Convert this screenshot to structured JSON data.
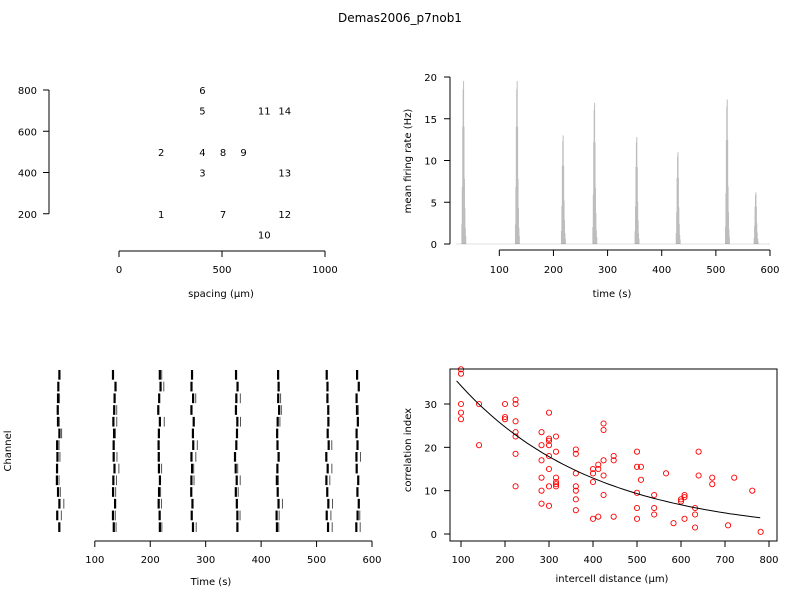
{
  "figure": {
    "title": "Demas2006_p7nob1"
  },
  "chart_data": [
    {
      "type": "scatter",
      "xlabel": "spacing (µm)",
      "ylabel": "",
      "xlim": [
        0,
        1000
      ],
      "ylim": [
        0,
        800
      ],
      "xticks": [
        0,
        500,
        1000
      ],
      "yticks": [
        200,
        400,
        600,
        800
      ],
      "points": [
        {
          "label": "1",
          "x": 200,
          "y": 200
        },
        {
          "label": "2",
          "x": 200,
          "y": 500
        },
        {
          "label": "3",
          "x": 400,
          "y": 400
        },
        {
          "label": "4",
          "x": 400,
          "y": 500
        },
        {
          "label": "5",
          "x": 400,
          "y": 700
        },
        {
          "label": "6",
          "x": 400,
          "y": 800
        },
        {
          "label": "7",
          "x": 500,
          "y": 200
        },
        {
          "label": "8",
          "x": 500,
          "y": 500
        },
        {
          "label": "9",
          "x": 600,
          "y": 500
        },
        {
          "label": "10",
          "x": 700,
          "y": 100
        },
        {
          "label": "11",
          "x": 700,
          "y": 700
        },
        {
          "label": "12",
          "x": 800,
          "y": 200
        },
        {
          "label": "13",
          "x": 800,
          "y": 400
        },
        {
          "label": "14",
          "x": 800,
          "y": 700
        }
      ]
    },
    {
      "type": "bar",
      "xlabel": "time (s)",
      "ylabel": "mean firing rate (Hz)",
      "xlim": [
        20,
        600
      ],
      "ylim": [
        0,
        20
      ],
      "xticks": [
        100,
        200,
        300,
        400,
        500,
        600
      ],
      "yticks": [
        0,
        5,
        10,
        15,
        20
      ],
      "color": "#bdbdbd",
      "bursts": [
        {
          "t": 34,
          "peak": 19.5
        },
        {
          "t": 133,
          "peak": 19.5
        },
        {
          "t": 218,
          "peak": 13.0
        },
        {
          "t": 276,
          "peak": 16.9
        },
        {
          "t": 354,
          "peak": 12.8
        },
        {
          "t": 430,
          "peak": 11.0
        },
        {
          "t": 521,
          "peak": 17.3
        },
        {
          "t": 574,
          "peak": 6.2
        }
      ]
    },
    {
      "type": "raster",
      "xlabel": "Time (s)",
      "ylabel": "Channel",
      "xlim": [
        30,
        600
      ],
      "xticks": [
        100,
        200,
        300,
        400,
        500,
        600
      ],
      "channels": 14,
      "burst_times": [
        34,
        135,
        217,
        276,
        355,
        430,
        520,
        574
      ]
    },
    {
      "type": "scatter",
      "xlabel": "intercell distance (µm)",
      "ylabel": "correlation index",
      "xlim": [
        80,
        800
      ],
      "ylim": [
        0,
        38
      ],
      "xticks": [
        100,
        200,
        300,
        400,
        500,
        600,
        700,
        800
      ],
      "yticks": [
        0,
        10,
        20,
        30
      ],
      "color": "#ff0000",
      "points": [
        [
          100,
          38
        ],
        [
          100,
          37
        ],
        [
          100,
          30
        ],
        [
          100,
          28
        ],
        [
          100,
          26.5
        ],
        [
          141,
          30
        ],
        [
          141,
          20.5
        ],
        [
          200,
          30
        ],
        [
          200,
          27
        ],
        [
          200,
          26.5
        ],
        [
          224,
          31
        ],
        [
          224,
          30
        ],
        [
          224,
          26
        ],
        [
          224,
          23.5
        ],
        [
          224,
          22.5
        ],
        [
          224,
          18.5
        ],
        [
          224,
          11
        ],
        [
          283,
          23.5
        ],
        [
          283,
          20.5
        ],
        [
          283,
          17
        ],
        [
          283,
          13
        ],
        [
          283,
          10
        ],
        [
          283,
          7
        ],
        [
          300,
          28
        ],
        [
          300,
          22
        ],
        [
          300,
          21.5
        ],
        [
          300,
          20.5
        ],
        [
          300,
          18
        ],
        [
          300,
          15
        ],
        [
          300,
          11
        ],
        [
          300,
          6.5
        ],
        [
          316,
          22.5
        ],
        [
          316,
          19
        ],
        [
          316,
          13
        ],
        [
          316,
          12
        ],
        [
          316,
          11.5
        ],
        [
          316,
          11
        ],
        [
          361,
          19.5
        ],
        [
          361,
          18.5
        ],
        [
          361,
          14
        ],
        [
          361,
          11
        ],
        [
          361,
          10
        ],
        [
          361,
          8
        ],
        [
          361,
          5.5
        ],
        [
          400,
          15
        ],
        [
          400,
          14
        ],
        [
          400,
          12
        ],
        [
          400,
          3.5
        ],
        [
          412,
          16
        ],
        [
          412,
          15
        ],
        [
          412,
          4
        ],
        [
          424,
          25.5
        ],
        [
          424,
          24
        ],
        [
          424,
          17
        ],
        [
          424,
          13.5
        ],
        [
          424,
          9
        ],
        [
          447,
          18
        ],
        [
          447,
          17
        ],
        [
          447,
          4
        ],
        [
          500,
          19
        ],
        [
          500,
          15.5
        ],
        [
          500,
          9.5
        ],
        [
          500,
          6
        ],
        [
          500,
          3.5
        ],
        [
          509,
          15.5
        ],
        [
          509,
          12.5
        ],
        [
          539,
          9
        ],
        [
          539,
          6
        ],
        [
          539,
          4.5
        ],
        [
          566,
          14
        ],
        [
          583,
          2.5
        ],
        [
          600,
          8
        ],
        [
          600,
          7.5
        ],
        [
          608,
          9
        ],
        [
          608,
          8.5
        ],
        [
          608,
          3.5
        ],
        [
          632,
          6
        ],
        [
          632,
          4.5
        ],
        [
          632,
          1.5
        ],
        [
          640,
          19
        ],
        [
          640,
          13.5
        ],
        [
          671,
          13
        ],
        [
          671,
          11.5
        ],
        [
          707,
          2
        ],
        [
          721,
          13
        ],
        [
          762,
          10
        ],
        [
          781,
          0.5
        ]
      ],
      "fit_curve": {
        "label": "",
        "x": [
          90,
          780
        ],
        "a": 36.5,
        "b": 0.00325,
        "x0": 80
      }
    }
  ]
}
